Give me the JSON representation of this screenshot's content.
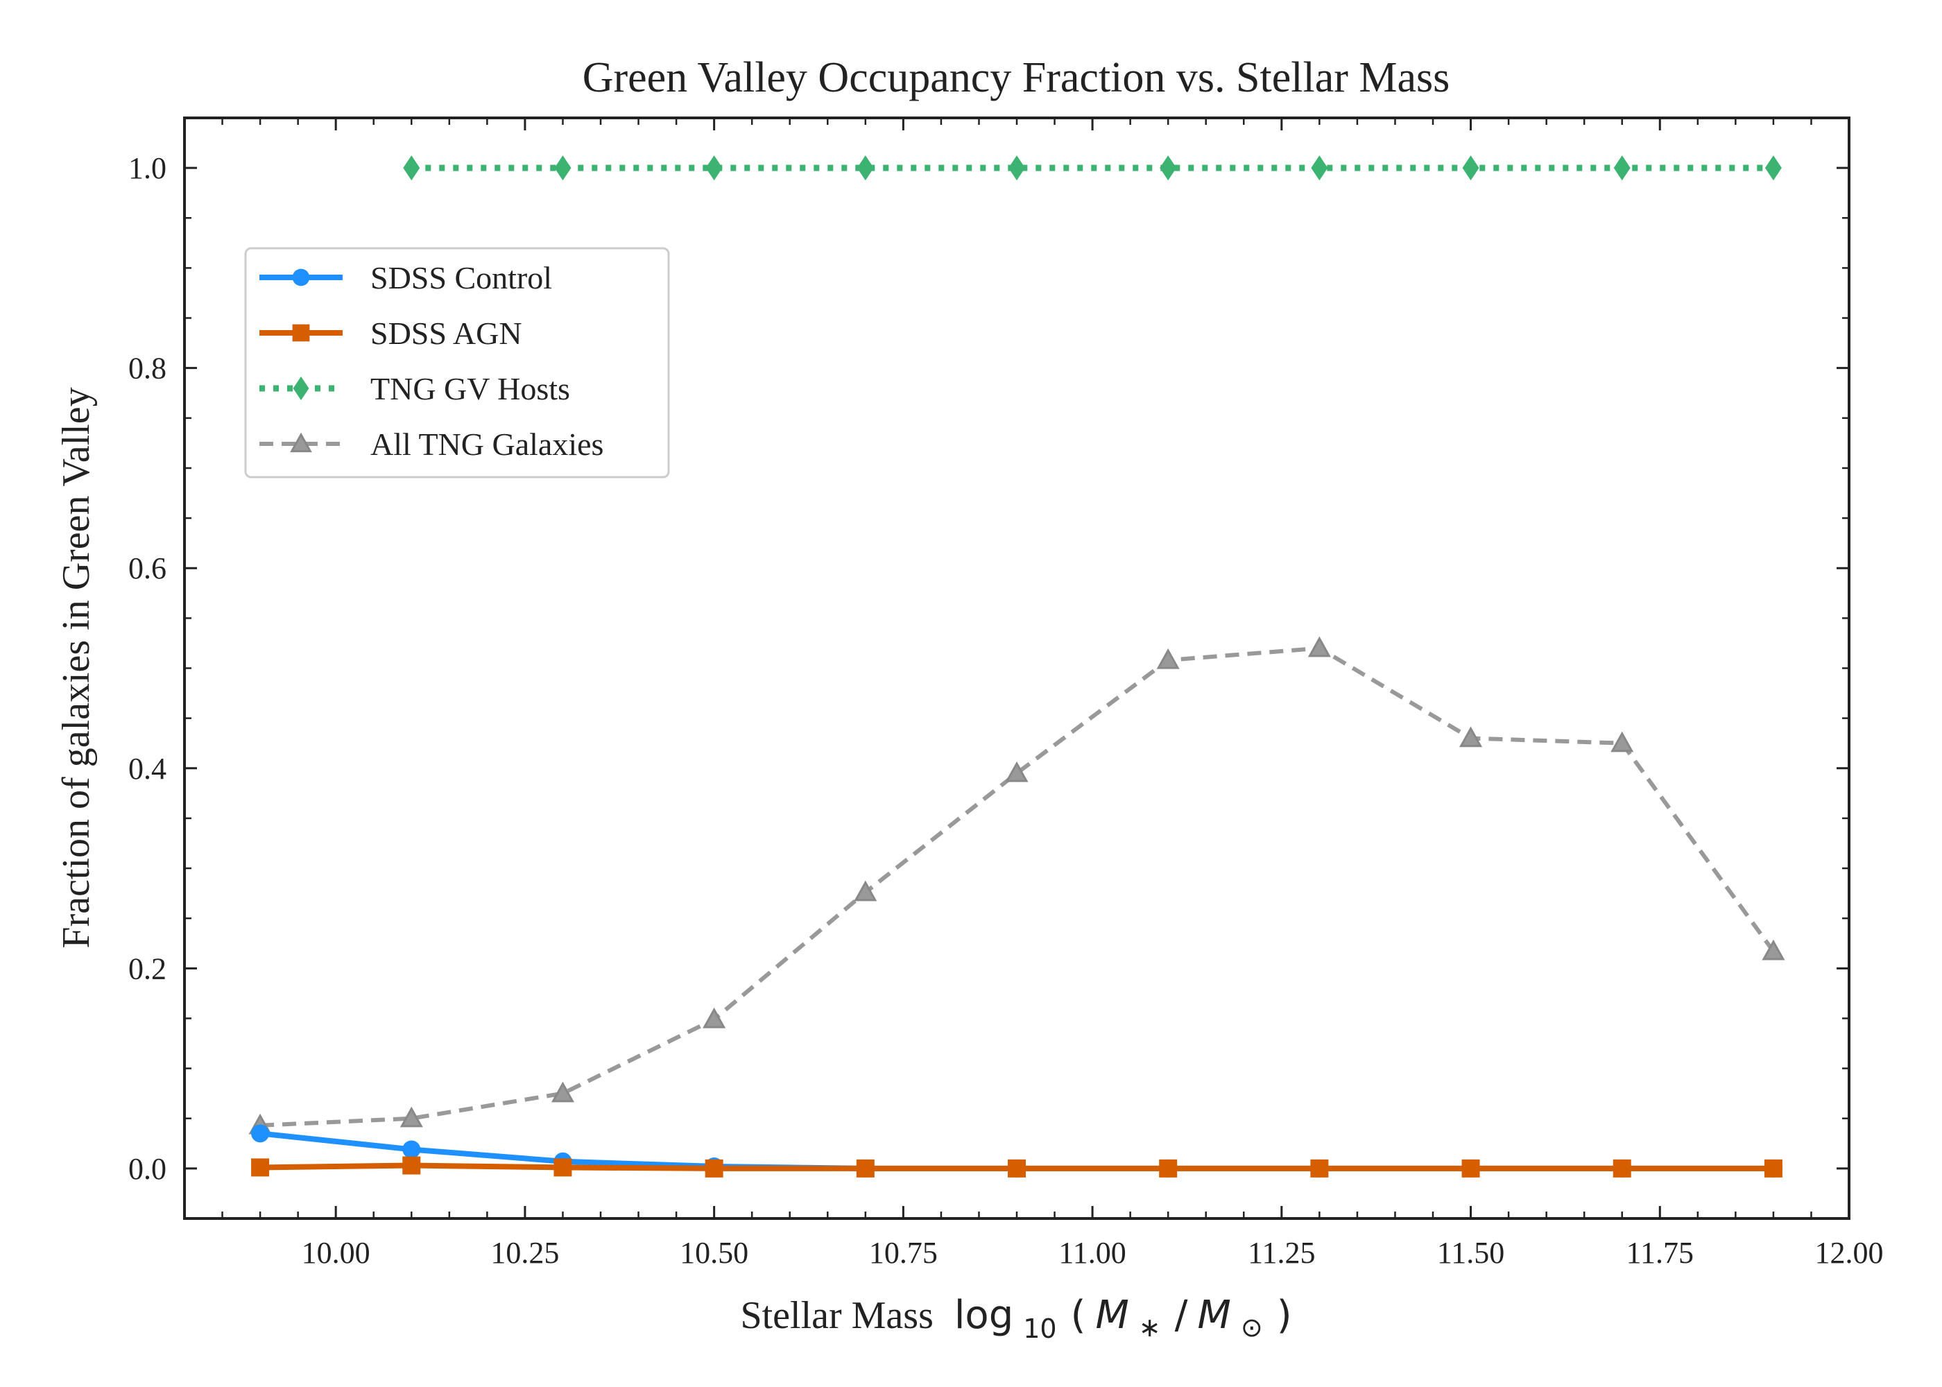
{
  "chart_data": {
    "type": "line",
    "title": "Green Valley Occupancy Fraction vs. Stellar Mass",
    "xlabel": {
      "text": "Stellar Mass",
      "math_log": "log",
      "math_sub": "10",
      "math_open": "(",
      "math_m1": "M",
      "math_star": "∗",
      "math_slash": "/",
      "math_m2": "M",
      "math_sun": "⊙",
      "math_close": ")"
    },
    "ylabel": "Fraction of galaxies in Green Valley",
    "xlim": [
      9.8,
      12.0
    ],
    "ylim": [
      -0.05,
      1.05
    ],
    "x_ticks": [
      10.0,
      10.25,
      10.5,
      10.75,
      11.0,
      11.25,
      11.5,
      11.75,
      12.0
    ],
    "x_tick_labels": [
      "10.00",
      "10.25",
      "10.50",
      "10.75",
      "11.00",
      "11.25",
      "11.50",
      "11.75",
      "12.00"
    ],
    "y_ticks": [
      0.0,
      0.2,
      0.4,
      0.6,
      0.8,
      1.0
    ],
    "y_tick_labels": [
      "0.0",
      "0.2",
      "0.4",
      "0.6",
      "0.8",
      "1.0"
    ],
    "grid": false,
    "legend_position": "upper-left",
    "series": [
      {
        "name": "SDSS Control",
        "color": "#1e90ff",
        "line": "solid",
        "marker": "circle",
        "x": [
          9.9,
          10.1,
          10.3,
          10.5,
          10.7,
          10.9,
          11.1,
          11.3,
          11.5,
          11.7,
          11.9
        ],
        "y": [
          0.035,
          0.019,
          0.007,
          0.002,
          0.0,
          0.0,
          0.0,
          0.0,
          0.0,
          0.0,
          0.0
        ]
      },
      {
        "name": "SDSS AGN",
        "color": "#d55e00",
        "line": "solid",
        "marker": "square",
        "x": [
          9.9,
          10.1,
          10.3,
          10.5,
          10.7,
          10.9,
          11.1,
          11.3,
          11.5,
          11.7,
          11.9
        ],
        "y": [
          0.001,
          0.003,
          0.001,
          0.0,
          0.0,
          0.0,
          0.0,
          0.0,
          0.0,
          0.0,
          0.0
        ]
      },
      {
        "name": "TNG GV Hosts",
        "color": "#3cb371",
        "line": "dotted",
        "marker": "diamond",
        "x": [
          10.1,
          10.3,
          10.5,
          10.7,
          10.9,
          11.1,
          11.3,
          11.5,
          11.7,
          11.9
        ],
        "y": [
          1.0,
          1.0,
          1.0,
          1.0,
          1.0,
          1.0,
          1.0,
          1.0,
          1.0,
          1.0
        ]
      },
      {
        "name": "All TNG Galaxies",
        "color": "#999999",
        "line": "dashed",
        "marker": "triangle",
        "x": [
          9.9,
          10.1,
          10.3,
          10.5,
          10.7,
          10.9,
          11.1,
          11.3,
          11.5,
          11.7,
          11.9
        ],
        "y": [
          0.043,
          0.05,
          0.075,
          0.149,
          0.276,
          0.395,
          0.508,
          0.52,
          0.43,
          0.425,
          0.217
        ]
      }
    ]
  }
}
